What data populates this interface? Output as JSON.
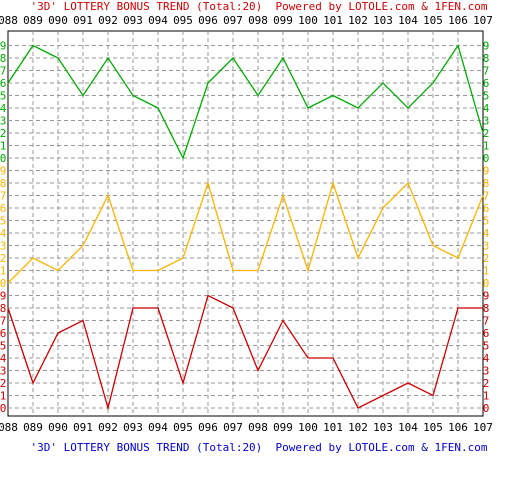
{
  "title_top": "'3D' LOTTERY BONUS TREND (Total:20)  Powered by LOTOLE.com & 1FEN.com",
  "title_bottom": "'3D' LOTTERY BONUS TREND (Total:20)  Powered by LOTOLE.com & 1FEN.com",
  "colors": {
    "green": "#00aa00",
    "orange": "#ffb400",
    "red": "#cc0000",
    "grid": "#999999",
    "frame": "#000000"
  },
  "chart_data": {
    "type": "line",
    "categories": [
      "088",
      "089",
      "090",
      "091",
      "092",
      "093",
      "094",
      "095",
      "096",
      "097",
      "098",
      "099",
      "100",
      "101",
      "102",
      "103",
      "104",
      "105",
      "106",
      "107"
    ],
    "panels": [
      {
        "color": "green",
        "ylim": [
          0,
          9
        ],
        "values": [
          6,
          9,
          8,
          5,
          8,
          5,
          4,
          0,
          6,
          8,
          5,
          8,
          4,
          5,
          4,
          6,
          4,
          6,
          9,
          2
        ]
      },
      {
        "color": "orange",
        "ylim": [
          0,
          9
        ],
        "values": [
          0,
          2,
          1,
          3,
          7,
          1,
          1,
          2,
          8,
          1,
          1,
          7,
          1,
          8,
          2,
          6,
          8,
          3,
          2,
          7
        ]
      },
      {
        "color": "red",
        "ylim": [
          0,
          9
        ],
        "values": [
          8,
          2,
          6,
          7,
          0,
          8,
          8,
          2,
          9,
          8,
          3,
          7,
          4,
          4,
          0,
          1,
          2,
          1,
          8,
          8
        ]
      }
    ],
    "tick_labels": [
      "0",
      "1",
      "2",
      "3",
      "4",
      "5",
      "6",
      "7",
      "8",
      "9"
    ],
    "grid": true
  }
}
